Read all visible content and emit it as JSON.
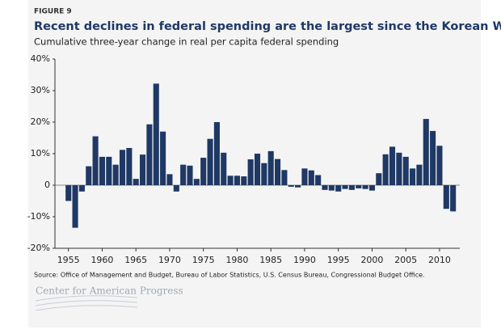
{
  "chart_data": {
    "type": "bar",
    "figure_label": "FIGURE 9",
    "title": "Recent declines in federal spending are the largest since the Korean War",
    "subtitle": "Cumulative three-year change in real per capita federal spending",
    "source": "Source: Office of Management and Budget, Bureau of Labor Statistics, U.S. Census Bureau, Congressional Budget Office.",
    "logo": "Center for American Progress",
    "color": "#1f3864",
    "x": [
      1955,
      1956,
      1957,
      1958,
      1959,
      1960,
      1961,
      1962,
      1963,
      1964,
      1965,
      1966,
      1967,
      1968,
      1969,
      1970,
      1971,
      1972,
      1973,
      1974,
      1975,
      1976,
      1977,
      1978,
      1979,
      1980,
      1981,
      1982,
      1983,
      1984,
      1985,
      1986,
      1987,
      1988,
      1989,
      1990,
      1991,
      1992,
      1993,
      1994,
      1995,
      1996,
      1997,
      1998,
      1999,
      2000,
      2001,
      2002,
      2003,
      2004,
      2005,
      2006,
      2007,
      2008,
      2009,
      2010,
      2011,
      2012
    ],
    "values": [
      -5,
      -13.5,
      -2,
      6,
      15.5,
      9,
      9,
      6.5,
      11.2,
      11.8,
      2,
      9.7,
      19.3,
      32.2,
      17,
      3.5,
      -2,
      6.5,
      6.2,
      2,
      8.7,
      14.7,
      20,
      10.3,
      3,
      3,
      2.8,
      8.2,
      10,
      7,
      10.8,
      8.3,
      4.8,
      -0.5,
      -0.7,
      5.3,
      4.7,
      3.2,
      -1.5,
      -1.7,
      -2,
      -1.2,
      -1.5,
      -1,
      -1.2,
      -1.7,
      3.8,
      9.8,
      12.2,
      10.3,
      9,
      5.3,
      6.5,
      21,
      17.2,
      12.5,
      -7.5,
      -8.3
    ],
    "xlim": [
      1953,
      2013
    ],
    "xticks": [
      1955,
      1960,
      1965,
      1970,
      1975,
      1980,
      1985,
      1990,
      1995,
      2000,
      2005,
      2010
    ],
    "ylim": [
      -20,
      40
    ],
    "yticks": [
      {
        "value": -20,
        "label": "-20%"
      },
      {
        "value": -10,
        "label": "-10%"
      },
      0,
      {
        "value": 10,
        "label": "10%"
      },
      {
        "value": 20,
        "label": "20%"
      },
      {
        "value": 30,
        "label": "30%"
      },
      {
        "value": 40,
        "label": "40%"
      }
    ],
    "grid": false
  }
}
